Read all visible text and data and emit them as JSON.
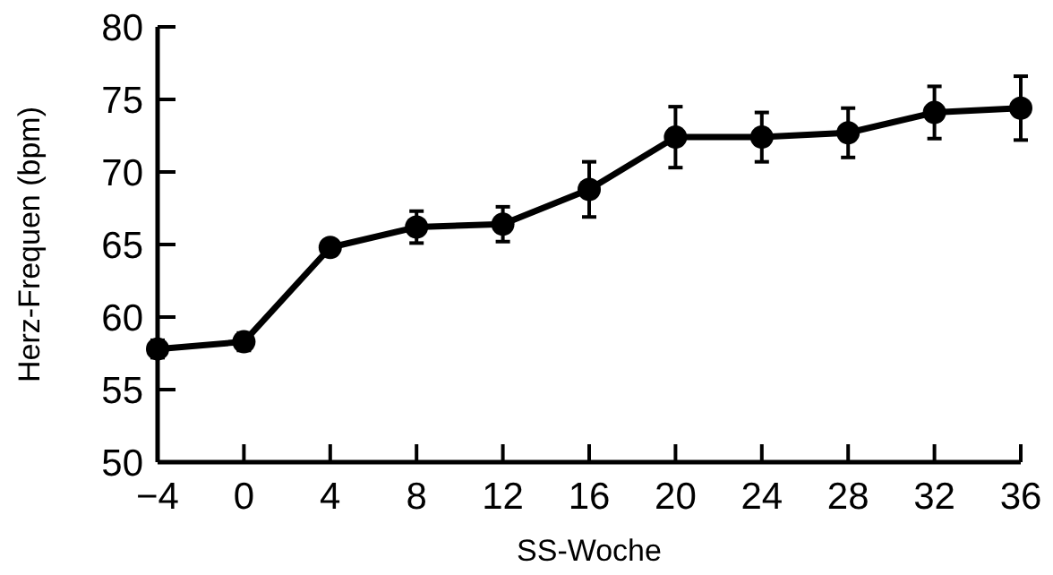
{
  "chart_data": {
    "type": "line",
    "xlabel": "SS-Woche",
    "ylabel": "Herz-Frequen (bpm)",
    "x": [
      -4,
      0,
      4,
      8,
      12,
      16,
      20,
      24,
      28,
      32,
      36
    ],
    "series": [
      {
        "color": "#000000",
        "values": [
          57.8,
          58.3,
          64.8,
          66.2,
          66.4,
          68.8,
          72.4,
          72.4,
          72.7,
          74.1,
          74.4
        ],
        "errors": [
          0.6,
          0.6,
          0.5,
          1.1,
          1.2,
          1.9,
          2.1,
          1.7,
          1.7,
          1.8,
          2.2
        ]
      }
    ],
    "xlim": [
      -4,
      36
    ],
    "xticks": [
      {
        "value": -4,
        "label": "−4"
      },
      0,
      4,
      8,
      12,
      16,
      20,
      24,
      28,
      32,
      36
    ],
    "ylim": [
      50,
      80
    ],
    "yticks": [
      50,
      55,
      60,
      65,
      70,
      75,
      80
    ],
    "grid": false,
    "marker": "circle",
    "line_style": "solid"
  }
}
